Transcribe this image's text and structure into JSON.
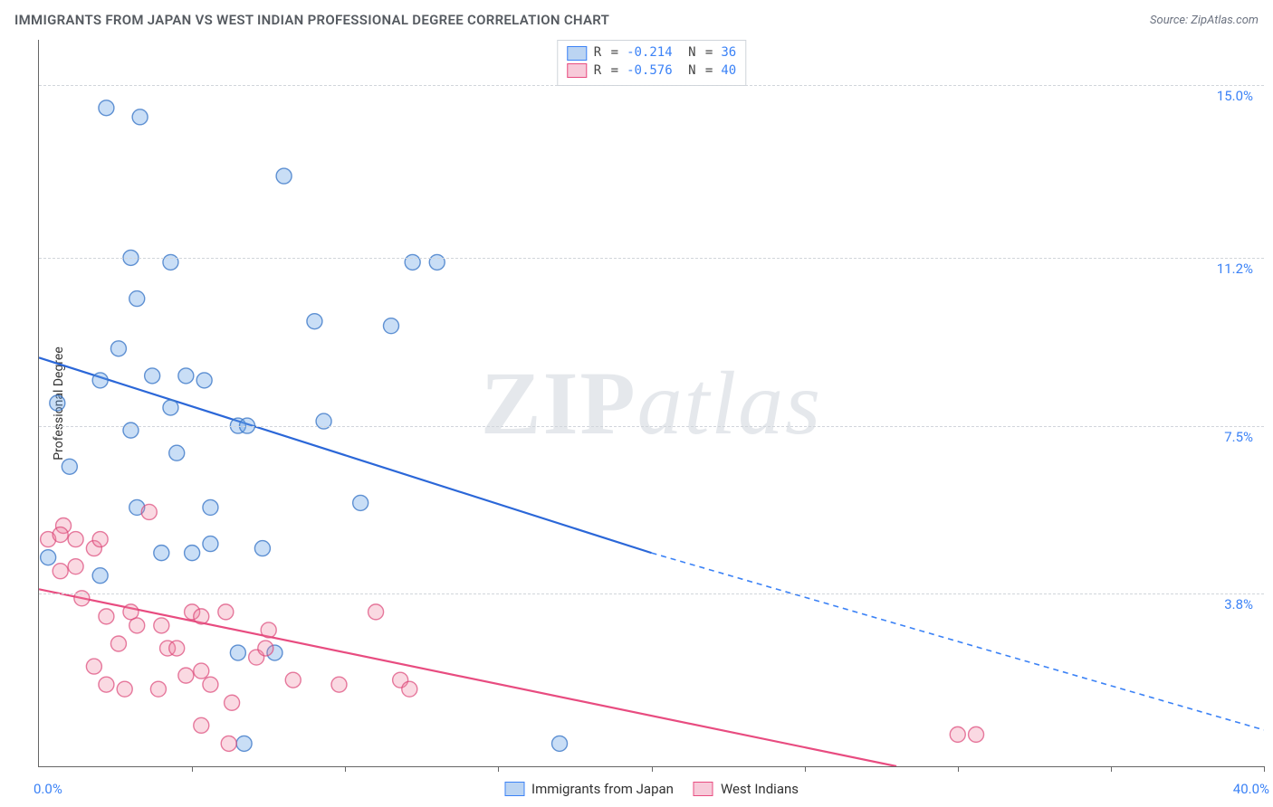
{
  "title": "IMMIGRANTS FROM JAPAN VS WEST INDIAN PROFESSIONAL DEGREE CORRELATION CHART",
  "source": "Source: ZipAtlas.com",
  "watermark": {
    "a": "ZIP",
    "b": "atlas"
  },
  "ylabel": "Professional Degree",
  "colors": {
    "series1_fill": "rgba(100,160,230,0.35)",
    "series1_stroke": "rgba(60,120,200,0.8)",
    "series1_trend": "#2b67d8",
    "series1_trend_dash": "#3b82f6",
    "series2_fill": "rgba(240,130,160,0.3)",
    "series2_stroke": "rgba(220,70,120,0.7)",
    "series2_trend": "#e84c80",
    "axis": "#666666",
    "grid": "#d1d5db",
    "tick_label": "#3b82f6",
    "title_color": "#555a60"
  },
  "type": "scatter",
  "xlim": [
    0,
    40
  ],
  "ylim": [
    0,
    16
  ],
  "marker_radius": 8.5,
  "yticks": [
    3.8,
    7.5,
    11.2,
    15.0
  ],
  "ytick_labels": [
    "3.8%",
    "7.5%",
    "11.2%",
    "15.0%"
  ],
  "xticks": [
    5,
    10,
    15,
    20,
    25,
    30,
    35,
    40
  ],
  "x_start_label": "0.0%",
  "x_end_label": "40.0%",
  "title_fontsize": 15,
  "label_fontsize": 14,
  "tick_fontsize": 15,
  "background_color": "#ffffff",
  "legend_stats": [
    {
      "swatch": "blue",
      "R": "-0.214",
      "N": "36"
    },
    {
      "swatch": "pink",
      "R": "-0.576",
      "N": "40"
    }
  ],
  "legend_series": [
    {
      "swatch": "blue",
      "label": "Immigrants from Japan"
    },
    {
      "swatch": "pink",
      "label": "West Indians"
    }
  ],
  "series": [
    {
      "name": "Immigrants from Japan",
      "color_key": "series1",
      "trend": {
        "x1": 0,
        "y1": 9.0,
        "x2": 20,
        "y2": 4.7,
        "dash_to_x": 40,
        "dash_to_y": 0.8
      },
      "points": [
        [
          0.3,
          4.6
        ],
        [
          1.0,
          6.6
        ],
        [
          0.6,
          8.0
        ],
        [
          2.2,
          14.5
        ],
        [
          3.3,
          14.3
        ],
        [
          3.0,
          11.2
        ],
        [
          4.3,
          11.1
        ],
        [
          2.6,
          9.2
        ],
        [
          2.0,
          8.5
        ],
        [
          3.2,
          10.3
        ],
        [
          2.0,
          4.2
        ],
        [
          3.7,
          8.6
        ],
        [
          3.0,
          7.4
        ],
        [
          4.3,
          7.9
        ],
        [
          4.5,
          6.9
        ],
        [
          4.8,
          8.6
        ],
        [
          5.4,
          8.5
        ],
        [
          6.5,
          7.5
        ],
        [
          6.8,
          7.5
        ],
        [
          5.0,
          4.7
        ],
        [
          5.6,
          5.7
        ],
        [
          7.3,
          4.8
        ],
        [
          5.6,
          4.9
        ],
        [
          8.0,
          13.0
        ],
        [
          12.2,
          11.1
        ],
        [
          13.0,
          11.1
        ],
        [
          9.3,
          7.6
        ],
        [
          9.0,
          9.8
        ],
        [
          11.5,
          9.7
        ],
        [
          6.5,
          2.5
        ],
        [
          6.7,
          0.5
        ],
        [
          7.7,
          2.5
        ],
        [
          10.5,
          5.8
        ],
        [
          17.0,
          0.5
        ],
        [
          3.2,
          5.7
        ],
        [
          4.0,
          4.7
        ]
      ]
    },
    {
      "name": "West Indians",
      "color_key": "series2",
      "trend": {
        "x1": 0,
        "y1": 3.9,
        "x2": 28,
        "y2": 0
      },
      "points": [
        [
          0.3,
          5.0
        ],
        [
          0.8,
          5.3
        ],
        [
          0.7,
          5.1
        ],
        [
          1.2,
          5.0
        ],
        [
          0.7,
          4.3
        ],
        [
          1.8,
          4.8
        ],
        [
          2.0,
          5.0
        ],
        [
          3.6,
          5.6
        ],
        [
          2.2,
          3.3
        ],
        [
          3.0,
          3.4
        ],
        [
          3.2,
          3.1
        ],
        [
          4.0,
          3.1
        ],
        [
          1.8,
          2.2
        ],
        [
          4.2,
          2.6
        ],
        [
          4.5,
          2.6
        ],
        [
          5.0,
          3.4
        ],
        [
          5.3,
          3.3
        ],
        [
          2.2,
          1.8
        ],
        [
          2.8,
          1.7
        ],
        [
          2.6,
          2.7
        ],
        [
          3.9,
          1.7
        ],
        [
          4.8,
          2.0
        ],
        [
          5.3,
          0.9
        ],
        [
          6.2,
          0.5
        ],
        [
          5.3,
          2.1
        ],
        [
          7.1,
          2.4
        ],
        [
          6.1,
          3.4
        ],
        [
          7.5,
          3.0
        ],
        [
          7.4,
          2.6
        ],
        [
          8.3,
          1.9
        ],
        [
          9.8,
          1.8
        ],
        [
          11.0,
          3.4
        ],
        [
          11.8,
          1.9
        ],
        [
          12.1,
          1.7
        ],
        [
          30.0,
          0.7
        ],
        [
          30.6,
          0.7
        ],
        [
          5.6,
          1.8
        ],
        [
          6.3,
          1.4
        ],
        [
          1.2,
          4.4
        ],
        [
          1.4,
          3.7
        ]
      ]
    }
  ]
}
